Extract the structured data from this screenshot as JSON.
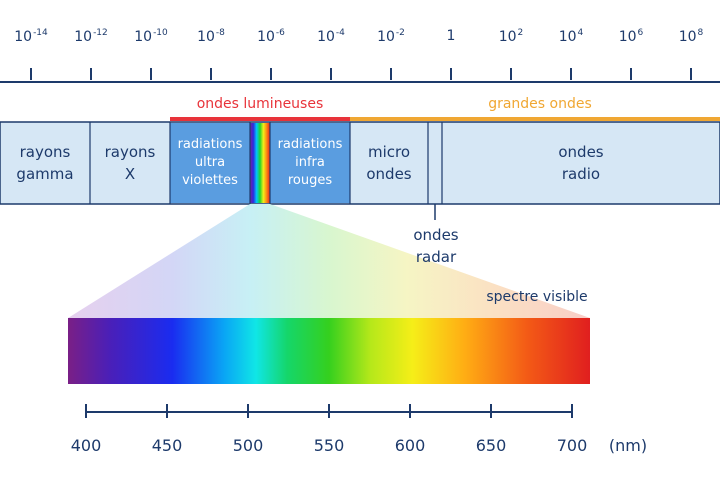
{
  "scale": {
    "labels": [
      {
        "base": "10",
        "exp": "-14"
      },
      {
        "base": "10",
        "exp": "-12"
      },
      {
        "base": "10",
        "exp": "-10"
      },
      {
        "base": "10",
        "exp": "-8"
      },
      {
        "base": "10",
        "exp": "-6"
      },
      {
        "base": "10",
        "exp": "-4"
      },
      {
        "base": "10",
        "exp": "-2"
      },
      {
        "base": "1",
        "exp": ""
      },
      {
        "base": "10",
        "exp": "2"
      },
      {
        "base": "10",
        "exp": "4"
      },
      {
        "base": "10",
        "exp": "6"
      },
      {
        "base": "10",
        "exp": "8"
      }
    ]
  },
  "bands": {
    "light_waves": "ondes lumineuses",
    "long_waves": "grandes ondes",
    "light_color": "#e8333a",
    "long_color": "#f0a733"
  },
  "cells": {
    "gamma": "rayons\ngamma",
    "xray": "rayons\nX",
    "uv": "radiations\nultra\nviolettes",
    "ir": "radiations\ninfra\nrouges",
    "micro": "micro\nondes",
    "radio": "ondes\nradio"
  },
  "labels": {
    "radar": "ondes\nradar",
    "visible": "spectre visible",
    "unit": "(nm)"
  },
  "colors": {
    "cell_bg": "#d6e7f5",
    "light_cell_bg": "#5a9de0",
    "text": "#1d3a6b"
  },
  "visible_axis": {
    "ticks": [
      "400",
      "450",
      "500",
      "550",
      "600",
      "650",
      "700"
    ]
  }
}
